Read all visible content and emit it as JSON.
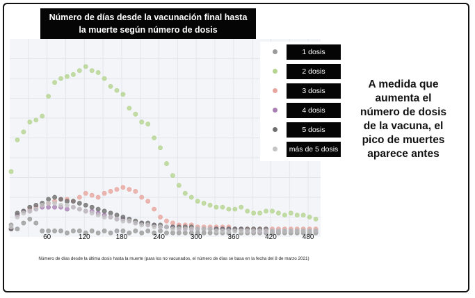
{
  "title_lines": [
    "Número de días desde la vacunación final hasta",
    "la muerte según número de dosis"
  ],
  "side_note_lines": [
    "A medida que",
    "aumenta el",
    "número de dosis",
    "de la vacuna, el",
    "pico de muertes",
    "aparece antes"
  ],
  "chart_data": {
    "type": "scatter",
    "title": "Número de días desde la vacunación final hasta la muerte según número de dosis",
    "xlabel": "Número de días desde la última dosis hasta la muerte (para los no vacunados, el número de días se basa en la fecha del 8 de marzo 2021)",
    "ylabel": "",
    "x_ticks": [
      60,
      120,
      180,
      240,
      300,
      360,
      420,
      480
    ],
    "xlim": [
      0,
      500
    ],
    "ylim": [
      0,
      100
    ],
    "grid": true,
    "legend_position": "top-right",
    "series": [
      {
        "name": "1 dosis",
        "color": "#9a9a9a",
        "points": [
          [
            0,
            6
          ],
          [
            10,
            4
          ],
          [
            20,
            7
          ],
          [
            30,
            9
          ],
          [
            40,
            7
          ],
          [
            50,
            3
          ],
          [
            60,
            3
          ],
          [
            70,
            3
          ],
          [
            80,
            3
          ],
          [
            90,
            2
          ],
          [
            100,
            3
          ],
          [
            110,
            3
          ],
          [
            120,
            2
          ],
          [
            130,
            3
          ],
          [
            140,
            2
          ],
          [
            150,
            3
          ],
          [
            160,
            2
          ],
          [
            170,
            3
          ],
          [
            180,
            3
          ],
          [
            190,
            2
          ],
          [
            200,
            3
          ],
          [
            210,
            2
          ],
          [
            220,
            3
          ],
          [
            230,
            2
          ],
          [
            240,
            3
          ],
          [
            250,
            2
          ],
          [
            260,
            2
          ],
          [
            270,
            2
          ],
          [
            280,
            2
          ],
          [
            290,
            2
          ],
          [
            300,
            2
          ],
          [
            310,
            2
          ],
          [
            320,
            2
          ],
          [
            330,
            2
          ],
          [
            340,
            2
          ],
          [
            350,
            2
          ],
          [
            360,
            3
          ],
          [
            370,
            2
          ],
          [
            380,
            2
          ],
          [
            390,
            2
          ],
          [
            400,
            2
          ],
          [
            410,
            2
          ],
          [
            420,
            2
          ],
          [
            430,
            2
          ],
          [
            440,
            2
          ],
          [
            450,
            2
          ],
          [
            460,
            2
          ],
          [
            470,
            2
          ],
          [
            480,
            2
          ],
          [
            490,
            2
          ]
        ]
      },
      {
        "name": "2 dosis",
        "color": "#b5d48f",
        "points": [
          [
            0,
            33
          ],
          [
            10,
            49
          ],
          [
            20,
            53
          ],
          [
            30,
            58
          ],
          [
            40,
            59
          ],
          [
            50,
            61
          ],
          [
            60,
            71
          ],
          [
            70,
            78
          ],
          [
            80,
            80
          ],
          [
            90,
            81
          ],
          [
            100,
            82
          ],
          [
            110,
            84
          ],
          [
            120,
            86
          ],
          [
            130,
            84
          ],
          [
            140,
            83
          ],
          [
            150,
            80
          ],
          [
            160,
            76
          ],
          [
            170,
            74
          ],
          [
            180,
            72
          ],
          [
            190,
            65
          ],
          [
            200,
            62
          ],
          [
            210,
            58
          ],
          [
            220,
            57
          ],
          [
            230,
            50
          ],
          [
            240,
            45
          ],
          [
            250,
            37
          ],
          [
            260,
            31
          ],
          [
            270,
            26
          ],
          [
            280,
            22
          ],
          [
            290,
            20
          ],
          [
            300,
            18
          ],
          [
            310,
            17
          ],
          [
            320,
            16
          ],
          [
            330,
            15
          ],
          [
            340,
            15
          ],
          [
            350,
            14
          ],
          [
            360,
            14
          ],
          [
            370,
            15
          ],
          [
            380,
            13
          ],
          [
            390,
            12
          ],
          [
            400,
            12
          ],
          [
            410,
            13
          ],
          [
            420,
            13
          ],
          [
            430,
            12
          ],
          [
            440,
            11
          ],
          [
            450,
            12
          ],
          [
            460,
            11
          ],
          [
            470,
            11
          ],
          [
            480,
            10
          ],
          [
            490,
            9
          ]
        ]
      },
      {
        "name": "3 dosis",
        "color": "#e8a59e",
        "points": [
          [
            0,
            4
          ],
          [
            10,
            11
          ],
          [
            20,
            13
          ],
          [
            30,
            14
          ],
          [
            40,
            15
          ],
          [
            50,
            16
          ],
          [
            60,
            17
          ],
          [
            70,
            18
          ],
          [
            80,
            19
          ],
          [
            90,
            19
          ],
          [
            100,
            18
          ],
          [
            110,
            20
          ],
          [
            120,
            22
          ],
          [
            130,
            21
          ],
          [
            140,
            20
          ],
          [
            150,
            22
          ],
          [
            160,
            23
          ],
          [
            170,
            24
          ],
          [
            180,
            25
          ],
          [
            190,
            24
          ],
          [
            200,
            23
          ],
          [
            210,
            20
          ],
          [
            220,
            18
          ],
          [
            230,
            14
          ],
          [
            240,
            10
          ],
          [
            250,
            8
          ],
          [
            260,
            7
          ],
          [
            270,
            6
          ],
          [
            280,
            6
          ],
          [
            290,
            6
          ],
          [
            300,
            5
          ],
          [
            310,
            5
          ],
          [
            320,
            5
          ],
          [
            330,
            5
          ],
          [
            340,
            5
          ],
          [
            350,
            5
          ],
          [
            360,
            4
          ],
          [
            370,
            4
          ],
          [
            380,
            4
          ],
          [
            390,
            4
          ],
          [
            400,
            4
          ],
          [
            410,
            4
          ],
          [
            420,
            4
          ],
          [
            430,
            4
          ],
          [
            440,
            4
          ],
          [
            450,
            4
          ],
          [
            460,
            4
          ],
          [
            470,
            4
          ],
          [
            480,
            4
          ],
          [
            490,
            4
          ]
        ]
      },
      {
        "name": "4 dosis",
        "color": "#a97fb3",
        "points": [
          [
            0,
            4
          ],
          [
            10,
            11
          ],
          [
            20,
            13
          ],
          [
            30,
            13
          ],
          [
            40,
            14
          ],
          [
            50,
            15
          ],
          [
            60,
            15
          ],
          [
            70,
            15
          ],
          [
            80,
            15
          ],
          [
            90,
            14
          ],
          [
            100,
            15
          ],
          [
            110,
            14
          ],
          [
            120,
            13
          ],
          [
            130,
            13
          ],
          [
            140,
            12
          ],
          [
            150,
            11
          ],
          [
            160,
            10
          ],
          [
            170,
            9
          ],
          [
            180,
            9
          ],
          [
            190,
            8
          ],
          [
            200,
            7
          ],
          [
            210,
            7
          ],
          [
            220,
            6
          ],
          [
            230,
            6
          ],
          [
            240,
            5
          ],
          [
            250,
            5
          ],
          [
            260,
            5
          ],
          [
            270,
            4
          ],
          [
            280,
            4
          ],
          [
            290,
            4
          ],
          [
            300,
            4
          ],
          [
            310,
            4
          ],
          [
            320,
            4
          ],
          [
            330,
            4
          ],
          [
            340,
            4
          ],
          [
            350,
            4
          ],
          [
            360,
            4
          ],
          [
            370,
            4
          ],
          [
            380,
            3
          ],
          [
            390,
            3
          ],
          [
            400,
            3
          ],
          [
            410,
            3
          ],
          [
            420,
            3
          ],
          [
            430,
            3
          ],
          [
            440,
            3
          ],
          [
            450,
            3
          ],
          [
            460,
            3
          ],
          [
            470,
            3
          ],
          [
            480,
            3
          ],
          [
            490,
            3
          ]
        ]
      },
      {
        "name": "5 dosis",
        "color": "#6e6e6e",
        "points": [
          [
            0,
            4
          ],
          [
            10,
            12
          ],
          [
            20,
            13
          ],
          [
            30,
            15
          ],
          [
            40,
            16
          ],
          [
            50,
            17
          ],
          [
            60,
            19
          ],
          [
            70,
            20
          ],
          [
            80,
            19
          ],
          [
            90,
            18
          ],
          [
            100,
            18
          ],
          [
            110,
            17
          ],
          [
            120,
            16
          ],
          [
            130,
            15
          ],
          [
            140,
            14
          ],
          [
            150,
            13
          ],
          [
            160,
            12
          ],
          [
            170,
            11
          ],
          [
            180,
            10
          ],
          [
            190,
            9
          ],
          [
            200,
            8
          ],
          [
            210,
            7
          ],
          [
            220,
            7
          ],
          [
            230,
            6
          ],
          [
            240,
            6
          ],
          [
            250,
            5
          ],
          [
            260,
            5
          ],
          [
            270,
            5
          ],
          [
            280,
            5
          ],
          [
            290,
            5
          ],
          [
            300,
            4
          ],
          [
            310,
            4
          ],
          [
            320,
            4
          ],
          [
            330,
            4
          ],
          [
            340,
            4
          ],
          [
            350,
            4
          ],
          [
            360,
            4
          ],
          [
            370,
            4
          ],
          [
            380,
            4
          ],
          [
            390,
            4
          ],
          [
            400,
            4
          ],
          [
            410,
            4
          ],
          [
            420,
            3
          ],
          [
            430,
            3
          ],
          [
            440,
            3
          ],
          [
            450,
            3
          ],
          [
            460,
            3
          ],
          [
            470,
            3
          ],
          [
            480,
            3
          ],
          [
            490,
            3
          ]
        ]
      },
      {
        "name": "más de 5 dosis",
        "color": "#c4c4c4",
        "points": [
          [
            0,
            5
          ],
          [
            10,
            10
          ],
          [
            20,
            12
          ],
          [
            30,
            13
          ],
          [
            40,
            14
          ],
          [
            50,
            16
          ],
          [
            60,
            17
          ],
          [
            70,
            17
          ],
          [
            80,
            16
          ],
          [
            90,
            16
          ],
          [
            100,
            15
          ],
          [
            110,
            14
          ],
          [
            120,
            13
          ],
          [
            130,
            12
          ],
          [
            140,
            11
          ],
          [
            150,
            10
          ],
          [
            160,
            10
          ],
          [
            170,
            9
          ],
          [
            180,
            8
          ],
          [
            190,
            8
          ],
          [
            200,
            7
          ],
          [
            210,
            6
          ],
          [
            220,
            6
          ],
          [
            230,
            5
          ],
          [
            240,
            5
          ],
          [
            250,
            5
          ],
          [
            260,
            4
          ],
          [
            270,
            4
          ],
          [
            280,
            4
          ],
          [
            290,
            4
          ],
          [
            300,
            4
          ],
          [
            310,
            4
          ],
          [
            320,
            4
          ],
          [
            330,
            3
          ],
          [
            340,
            3
          ],
          [
            350,
            3
          ],
          [
            360,
            3
          ],
          [
            370,
            3
          ],
          [
            380,
            3
          ],
          [
            390,
            3
          ],
          [
            400,
            3
          ],
          [
            410,
            3
          ],
          [
            420,
            3
          ],
          [
            430,
            3
          ],
          [
            440,
            3
          ],
          [
            450,
            3
          ],
          [
            460,
            3
          ],
          [
            470,
            3
          ],
          [
            480,
            3
          ],
          [
            490,
            3
          ]
        ]
      }
    ]
  }
}
